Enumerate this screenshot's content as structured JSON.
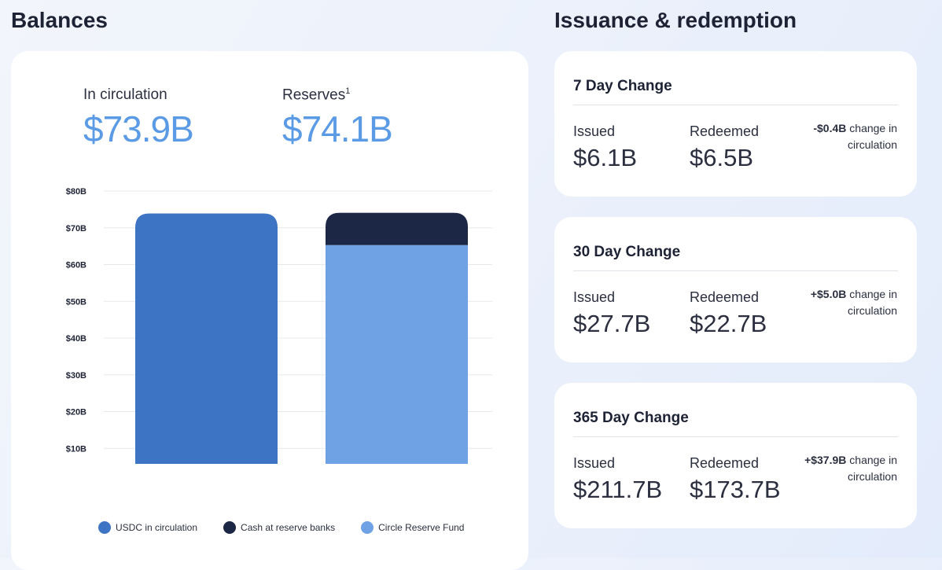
{
  "balances": {
    "heading": "Balances",
    "in_circulation_label": "In circulation",
    "in_circulation_value": "$73.9B",
    "reserves_label": "Reserves",
    "reserves_sup": "1",
    "reserves_value": "$74.1B"
  },
  "chart_data": {
    "type": "bar",
    "stacked": true,
    "categories": [
      "Circulation",
      "Reserves"
    ],
    "series": [
      {
        "name": "USDC in circulation",
        "values": [
          73.9,
          0
        ],
        "color": "#3e74c4"
      },
      {
        "name": "Circle Reserve Fund",
        "values": [
          0,
          65.3
        ],
        "color": "#6ea2e4"
      },
      {
        "name": "Cash at reserve banks",
        "values": [
          0,
          8.8
        ],
        "color": "#1c2645"
      }
    ],
    "yticks": [
      "$10B",
      "$20B",
      "$30B",
      "$40B",
      "$50B",
      "$60B",
      "$70B",
      "$80B"
    ],
    "ylim": [
      0,
      80
    ],
    "grid": true,
    "legend_placement": "bottom",
    "legend": [
      "USDC in circulation",
      "Cash at reserve banks",
      "Circle Reserve Fund"
    ]
  },
  "issuance": {
    "heading": "Issuance & redemption",
    "cards": [
      {
        "title": "7 Day Change",
        "issued_label": "Issued",
        "issued": "$6.1B",
        "redeemed_label": "Redeemed",
        "redeemed": "$6.5B",
        "change": "-$0.4B",
        "change_text": " change in circulation"
      },
      {
        "title": "30 Day Change",
        "issued_label": "Issued",
        "issued": "$27.7B",
        "redeemed_label": "Redeemed",
        "redeemed": "$22.7B",
        "change": "+$5.0B",
        "change_text": " change in circulation"
      },
      {
        "title": "365 Day Change",
        "issued_label": "Issued",
        "issued": "$211.7B",
        "redeemed_label": "Redeemed",
        "redeemed": "$173.7B",
        "change": "+$37.9B",
        "change_text": " change in circulation"
      }
    ]
  }
}
